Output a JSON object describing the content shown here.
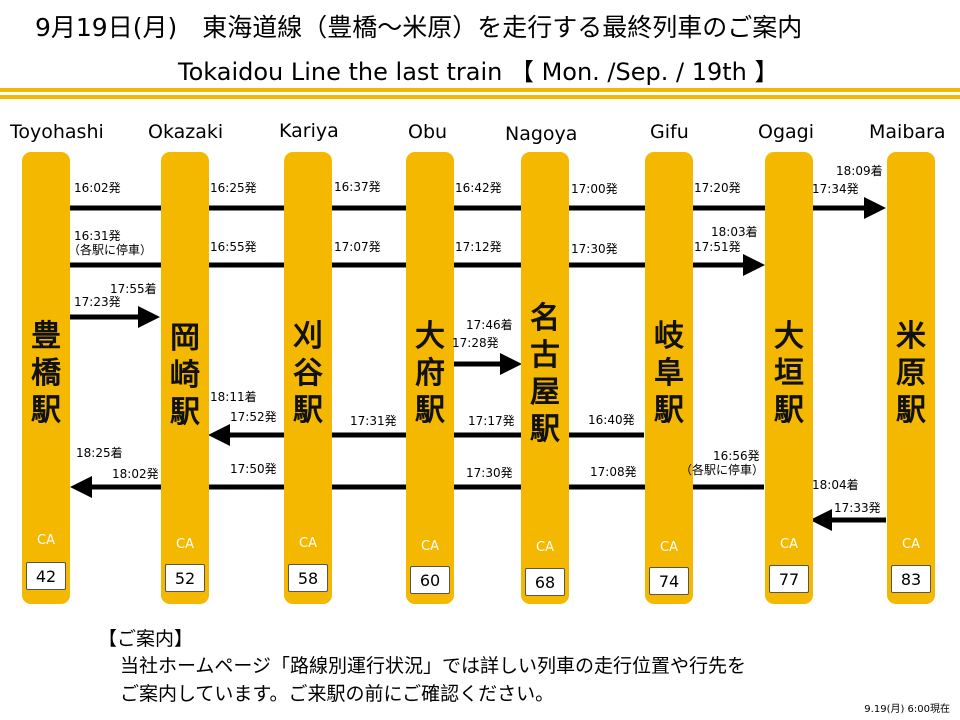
{
  "title_ja": "9月19日(月)　東海道線（豊橋～米原）を走行する最終列車のご案内",
  "title_en": "Tokaidou Line the last train 【 Mon. /Sep. / 19th 】",
  "colors": {
    "accent": "#f5b800",
    "arrow": "#000000"
  },
  "stations": [
    {
      "en": "Toyohashi",
      "ja": [
        "豊",
        "橋",
        "駅"
      ],
      "ca_label": "CA",
      "ca": "42"
    },
    {
      "en": "Okazaki",
      "ja": [
        "岡",
        "崎",
        "駅"
      ],
      "ca_label": "CA",
      "ca": "52"
    },
    {
      "en": "Kariya",
      "ja": [
        "刈",
        "谷",
        "駅"
      ],
      "ca_label": "CA",
      "ca": "58"
    },
    {
      "en": "Obu",
      "ja": [
        "大",
        "府",
        "駅"
      ],
      "ca_label": "CA",
      "ca": "60"
    },
    {
      "en": "Nagoya",
      "ja": [
        "名",
        "古",
        "屋",
        "駅"
      ],
      "ca_label": "CA",
      "ca": "68"
    },
    {
      "en": "Gifu",
      "ja": [
        "岐",
        "阜",
        "駅"
      ],
      "ca_label": "CA",
      "ca": "74"
    },
    {
      "en": "Ogagi",
      "ja": [
        "大",
        "垣",
        "駅"
      ],
      "ca_label": "CA",
      "ca": "77"
    },
    {
      "en": "Maibara",
      "ja": [
        "米",
        "原",
        "駅"
      ],
      "ca_label": "CA",
      "ca": "83"
    }
  ],
  "times": {
    "r1_toyohashi": "16:02発",
    "r1_okazaki": "16:25発",
    "r1_kariya": "16:37発",
    "r1_obu": "16:42発",
    "r1_nagoya": "17:00発",
    "r1_gifu": "17:20発",
    "r1_ogaki": "17:34発",
    "r1_maibara": "18:09着",
    "r2_toyohashi": "16:31発",
    "r2_note": "（各駅に停車）",
    "r2_okazaki": "16:55発",
    "r2_kariya": "17:07発",
    "r2_obu": "17:12発",
    "r2_nagoya": "17:30発",
    "r2_gifu": "17:51発",
    "r2_ogaki": "18:03着",
    "r3_toyohashi": "17:23発",
    "r3_okazaki": "17:55着",
    "r4_obu": "17:28発",
    "r4_nagoya": "17:46着",
    "r5_gifu": "16:40発",
    "r5_nagoya": "17:17発",
    "r5_obu": "17:31発",
    "r5_kariya": "17:52発",
    "r5_okazaki": "18:11着",
    "r6_ogaki": "16:56発",
    "r6_note": "（各駅に停車）",
    "r6_gifu": "17:08発",
    "r6_nagoya": "17:30発",
    "r6_kariya": "17:50発",
    "r6_okazaki": "18:02発",
    "r6_toyohashi": "18:25着",
    "r7_maibara": "17:33発",
    "r7_ogaki": "18:04着"
  },
  "notice": {
    "heading": "【ご案内】",
    "line1": "当社ホームページ「路線別運行状況」では詳しい列車の走行位置や行先を",
    "line2": "ご案内しています。ご来駅の前にご確認ください。"
  },
  "stamp": "9.19(月) 6:00現在"
}
